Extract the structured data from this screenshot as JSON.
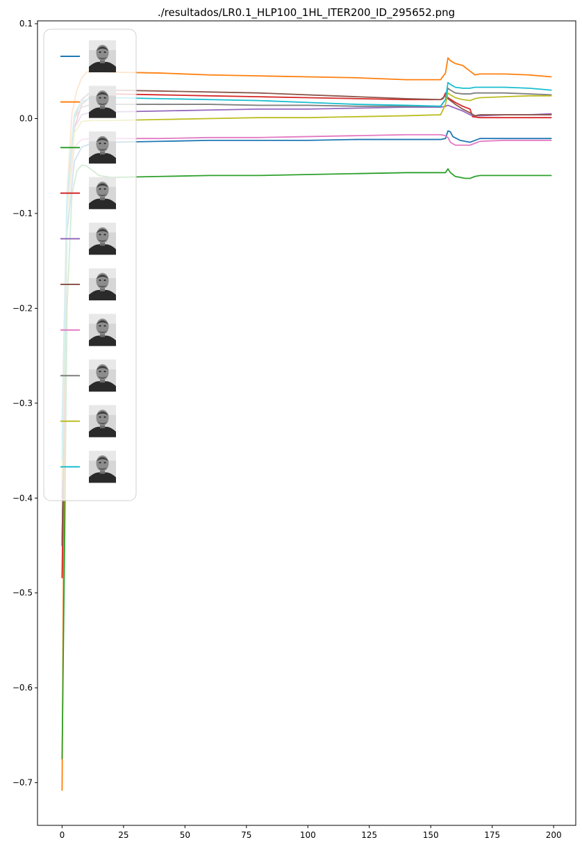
{
  "chart_data": {
    "type": "line",
    "title": "./resultados/LR0.1_HLP100_1HL_ITER200_ID_295652.png",
    "xlabel": "",
    "ylabel": "",
    "xlim": [
      -10,
      209
    ],
    "ylim": [
      -0.745,
      0.103
    ],
    "xticks": [
      0,
      25,
      50,
      75,
      100,
      125,
      150,
      175,
      200
    ],
    "yticks": [
      -0.7,
      -0.6,
      -0.5,
      -0.4,
      -0.3,
      -0.2,
      -0.1,
      0.0,
      0.1
    ],
    "ytick_labels": [
      "−0.7",
      "−0.6",
      "−0.5",
      "−0.4",
      "−0.3",
      "−0.2",
      "−0.1",
      "0.0",
      "0.1"
    ],
    "xtick_labels": [
      "0",
      "25",
      "50",
      "75",
      "100",
      "125",
      "150",
      "175",
      "200"
    ],
    "grid": false,
    "legend": {
      "placement": "upper-left",
      "entries": 10,
      "entry_kind": "face-thumbnail"
    },
    "series": [
      {
        "color": "#1f77b4",
        "x": [
          0,
          2,
          5,
          8,
          12,
          20,
          40,
          60,
          80,
          100,
          120,
          140,
          154,
          156,
          157,
          158,
          159,
          162,
          166,
          168,
          170,
          180,
          190,
          199
        ],
        "y": [
          -0.45,
          -0.12,
          -0.045,
          -0.03,
          -0.026,
          -0.025,
          -0.024,
          -0.023,
          -0.023,
          -0.023,
          -0.022,
          -0.022,
          -0.022,
          -0.021,
          -0.013,
          -0.014,
          -0.019,
          -0.023,
          -0.025,
          -0.023,
          -0.021,
          -0.021,
          -0.021,
          -0.021
        ]
      },
      {
        "color": "#ff7f0e",
        "x": [
          0,
          1,
          2,
          4,
          6,
          8,
          10,
          12,
          20,
          40,
          60,
          80,
          100,
          120,
          140,
          154,
          156,
          157,
          158,
          160,
          163,
          166,
          168,
          170,
          180,
          190,
          199
        ],
        "y": [
          -0.708,
          -0.3,
          -0.08,
          0.005,
          0.03,
          0.043,
          0.049,
          0.05,
          0.049,
          0.048,
          0.046,
          0.045,
          0.044,
          0.043,
          0.041,
          0.041,
          0.048,
          0.064,
          0.061,
          0.058,
          0.056,
          0.05,
          0.046,
          0.047,
          0.047,
          0.046,
          0.044
        ]
      },
      {
        "color": "#2ca02c",
        "x": [
          0,
          1,
          2,
          4,
          6,
          8,
          10,
          15,
          20,
          40,
          60,
          80,
          100,
          120,
          140,
          154,
          156,
          157,
          158,
          160,
          164,
          166,
          168,
          170,
          180,
          190,
          199
        ],
        "y": [
          -0.675,
          -0.45,
          -0.2,
          -0.08,
          -0.055,
          -0.049,
          -0.05,
          -0.06,
          -0.062,
          -0.061,
          -0.06,
          -0.06,
          -0.059,
          -0.058,
          -0.057,
          -0.057,
          -0.057,
          -0.053,
          -0.057,
          -0.061,
          -0.063,
          -0.063,
          -0.061,
          -0.06,
          -0.06,
          -0.06,
          -0.06
        ]
      },
      {
        "color": "#d62728",
        "x": [
          0,
          2,
          5,
          8,
          12,
          20,
          40,
          60,
          80,
          100,
          120,
          140,
          154,
          155,
          156,
          157,
          160,
          163,
          166,
          167,
          170,
          180,
          190,
          199
        ],
        "y": [
          -0.484,
          -0.1,
          -0.01,
          0.015,
          0.024,
          0.026,
          0.025,
          0.024,
          0.023,
          0.022,
          0.021,
          0.02,
          0.02,
          0.021,
          0.027,
          0.022,
          0.017,
          0.013,
          0.01,
          0.002,
          0.001,
          0.001,
          0.001,
          0.001
        ]
      },
      {
        "color": "#9467bd",
        "x": [
          0,
          2,
          5,
          8,
          12,
          20,
          40,
          60,
          80,
          100,
          120,
          140,
          154,
          156,
          157,
          160,
          163,
          166,
          168,
          170,
          180,
          190,
          199
        ],
        "y": [
          -0.4,
          -0.09,
          -0.01,
          0.004,
          0.007,
          0.007,
          0.008,
          0.009,
          0.01,
          0.01,
          0.011,
          0.012,
          0.012,
          0.013,
          0.014,
          0.011,
          0.008,
          0.004,
          0.003,
          0.003,
          0.004,
          0.004,
          0.005
        ]
      },
      {
        "color": "#8c564b",
        "x": [
          0,
          2,
          5,
          8,
          12,
          20,
          40,
          60,
          80,
          100,
          120,
          140,
          154,
          155,
          156,
          157,
          160,
          163,
          166,
          168,
          170,
          180,
          190,
          199
        ],
        "y": [
          -0.45,
          -0.1,
          0.0,
          0.02,
          0.029,
          0.03,
          0.029,
          0.028,
          0.027,
          0.025,
          0.023,
          0.021,
          0.02,
          0.022,
          0.024,
          0.021,
          0.015,
          0.01,
          0.006,
          0.003,
          0.004,
          0.004,
          0.004,
          0.004
        ]
      },
      {
        "color": "#e377c2",
        "x": [
          0,
          2,
          5,
          8,
          12,
          20,
          40,
          60,
          80,
          100,
          120,
          140,
          154,
          156,
          157,
          158,
          160,
          163,
          166,
          168,
          170,
          180,
          190,
          199
        ],
        "y": [
          -0.34,
          -0.1,
          -0.03,
          -0.022,
          -0.021,
          -0.021,
          -0.021,
          -0.02,
          -0.02,
          -0.019,
          -0.018,
          -0.017,
          -0.017,
          -0.018,
          -0.02,
          -0.025,
          -0.028,
          -0.028,
          -0.028,
          -0.026,
          -0.024,
          -0.023,
          -0.023,
          -0.023
        ]
      },
      {
        "color": "#7f7f7f",
        "x": [
          0,
          2,
          5,
          8,
          12,
          20,
          40,
          60,
          80,
          100,
          120,
          140,
          154,
          156,
          157,
          158,
          160,
          163,
          166,
          168,
          170,
          180,
          190,
          199
        ],
        "y": [
          -0.32,
          -0.08,
          0.0,
          0.012,
          0.015,
          0.015,
          0.015,
          0.015,
          0.014,
          0.014,
          0.013,
          0.013,
          0.013,
          0.02,
          0.032,
          0.03,
          0.027,
          0.026,
          0.026,
          0.027,
          0.027,
          0.027,
          0.026,
          0.025
        ]
      },
      {
        "color": "#bcbd22",
        "x": [
          0,
          2,
          5,
          8,
          12,
          20,
          40,
          60,
          80,
          100,
          120,
          140,
          154,
          156,
          157,
          158,
          160,
          163,
          166,
          168,
          170,
          180,
          190,
          199
        ],
        "y": [
          -0.38,
          -0.1,
          -0.015,
          -0.003,
          -0.002,
          -0.002,
          -0.001,
          0.0,
          0.001,
          0.001,
          0.002,
          0.003,
          0.004,
          0.015,
          0.027,
          0.025,
          0.022,
          0.02,
          0.019,
          0.021,
          0.022,
          0.023,
          0.024,
          0.024
        ]
      },
      {
        "color": "#17becf",
        "x": [
          0,
          2,
          5,
          8,
          12,
          20,
          40,
          60,
          80,
          100,
          120,
          140,
          154,
          156,
          157,
          158,
          160,
          163,
          166,
          168,
          170,
          180,
          190,
          199
        ],
        "y": [
          -0.36,
          -0.08,
          0.005,
          0.018,
          0.022,
          0.022,
          0.021,
          0.02,
          0.019,
          0.017,
          0.015,
          0.014,
          0.013,
          0.02,
          0.038,
          0.036,
          0.033,
          0.032,
          0.032,
          0.033,
          0.033,
          0.033,
          0.032,
          0.03
        ]
      }
    ]
  }
}
